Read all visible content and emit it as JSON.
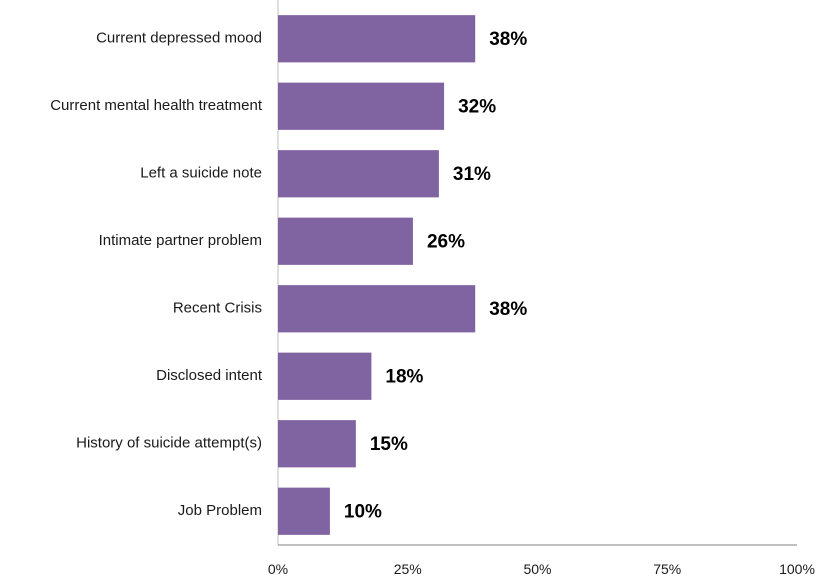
{
  "chart_data": {
    "type": "bar",
    "orientation": "horizontal",
    "title": "",
    "xlabel": "",
    "ylabel": "",
    "categories": [
      "Current depressed mood",
      "Current mental health treatment",
      "Left a suicide note",
      "Intimate partner problem",
      "Recent Crisis",
      "Disclosed intent",
      "History of suicide attempt(s)",
      "Job Problem"
    ],
    "values": [
      38,
      32,
      31,
      26,
      38,
      18,
      15,
      10
    ],
    "data_labels": [
      "38%",
      "32%",
      "31%",
      "26%",
      "38%",
      "18%",
      "15%",
      "10%"
    ],
    "xlim": [
      0,
      100
    ],
    "x_ticks": [
      0,
      25,
      50,
      75,
      100
    ],
    "x_tick_labels": [
      "0%",
      "25%",
      "50%",
      "75%",
      "100%"
    ],
    "bar_color": "#8064a2",
    "grid": false,
    "legend": "none"
  }
}
